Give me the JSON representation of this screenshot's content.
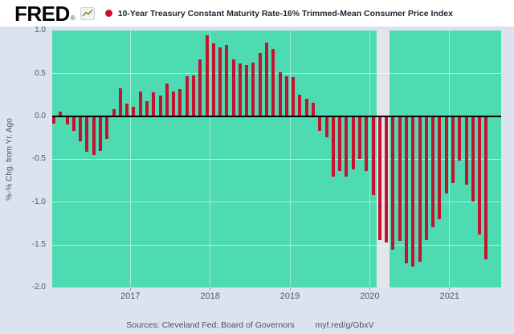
{
  "header": {
    "logo": "FRED",
    "registered": "®",
    "legend_marker": "●",
    "title": "10-Year Treasury Constant Maturity Rate-16% Trimmed-Mean Consumer Price Index"
  },
  "y_axis": {
    "label": "%-% Chg. from Yr. Ago",
    "ticks": [
      "1.0",
      "0.5",
      "0.0",
      "-0.5",
      "-1.0",
      "-1.5",
      "-2.0"
    ]
  },
  "x_axis": {
    "ticks": [
      "2017",
      "2018",
      "2019",
      "2020",
      "2021"
    ]
  },
  "footer": {
    "sources": "Sources: Cleveland Fed; Board of Governors",
    "link": "myf.red/g/GbxV"
  },
  "colors": {
    "background": "#dce3ee",
    "header_background": "#ffffff",
    "plot_background": "#4edbb1",
    "bar": "#c5122f",
    "zero_line": "#000000",
    "recession_band": "#e3e5e8",
    "grid_line_h": "rgba(255,255,255,0.55)",
    "grid_line_v": "rgba(255,255,255,0.45)",
    "legend_dot": "#cc1122",
    "axis_text": "#4d5766"
  },
  "chart_data": {
    "type": "bar",
    "title": "10-Year Treasury Constant Maturity Rate-16% Trimmed-Mean Consumer Price Index",
    "xlabel": "",
    "ylabel": "%-% Chg. from Yr. Ago",
    "ylim": [
      -2.0,
      1.0
    ],
    "grid": "on",
    "x_tick_labels": [
      "2017",
      "2018",
      "2019",
      "2020",
      "2021"
    ],
    "recession_band": {
      "start": "2020-02",
      "end": "2020-04"
    },
    "x": [
      "2016-01",
      "2016-02",
      "2016-03",
      "2016-04",
      "2016-05",
      "2016-06",
      "2016-07",
      "2016-08",
      "2016-09",
      "2016-10",
      "2016-11",
      "2016-12",
      "2017-01",
      "2017-02",
      "2017-03",
      "2017-04",
      "2017-05",
      "2017-06",
      "2017-07",
      "2017-08",
      "2017-09",
      "2017-10",
      "2017-11",
      "2017-12",
      "2018-01",
      "2018-02",
      "2018-03",
      "2018-04",
      "2018-05",
      "2018-06",
      "2018-07",
      "2018-08",
      "2018-09",
      "2018-10",
      "2018-11",
      "2018-12",
      "2019-01",
      "2019-02",
      "2019-03",
      "2019-04",
      "2019-05",
      "2019-06",
      "2019-07",
      "2019-08",
      "2019-09",
      "2019-10",
      "2019-11",
      "2019-12",
      "2020-01",
      "2020-02",
      "2020-03",
      "2020-04",
      "2020-05",
      "2020-06",
      "2020-07",
      "2020-08",
      "2020-09",
      "2020-10",
      "2020-11",
      "2020-12",
      "2021-01",
      "2021-02",
      "2021-03",
      "2021-04",
      "2021-05",
      "2021-06"
    ],
    "values": [
      -0.08,
      0.06,
      -0.09,
      -0.17,
      -0.29,
      -0.41,
      -0.45,
      -0.4,
      -0.26,
      0.08,
      0.33,
      0.15,
      0.11,
      0.29,
      0.18,
      0.28,
      0.24,
      0.38,
      0.29,
      0.32,
      0.47,
      0.48,
      0.67,
      0.95,
      0.85,
      0.81,
      0.83,
      0.67,
      0.62,
      0.6,
      0.63,
      0.74,
      0.86,
      0.79,
      0.52,
      0.47,
      0.46,
      0.25,
      0.21,
      0.16,
      -0.17,
      -0.24,
      -0.7,
      -0.64,
      -0.7,
      -0.62,
      -0.5,
      -0.64,
      -0.92,
      -1.44,
      -1.47,
      -1.56,
      -1.45,
      -1.72,
      -1.75,
      -1.7,
      -1.44,
      -1.29,
      -1.2,
      -0.9,
      -0.78,
      -0.52,
      -0.8,
      -0.99,
      -1.38,
      -1.67
    ]
  }
}
